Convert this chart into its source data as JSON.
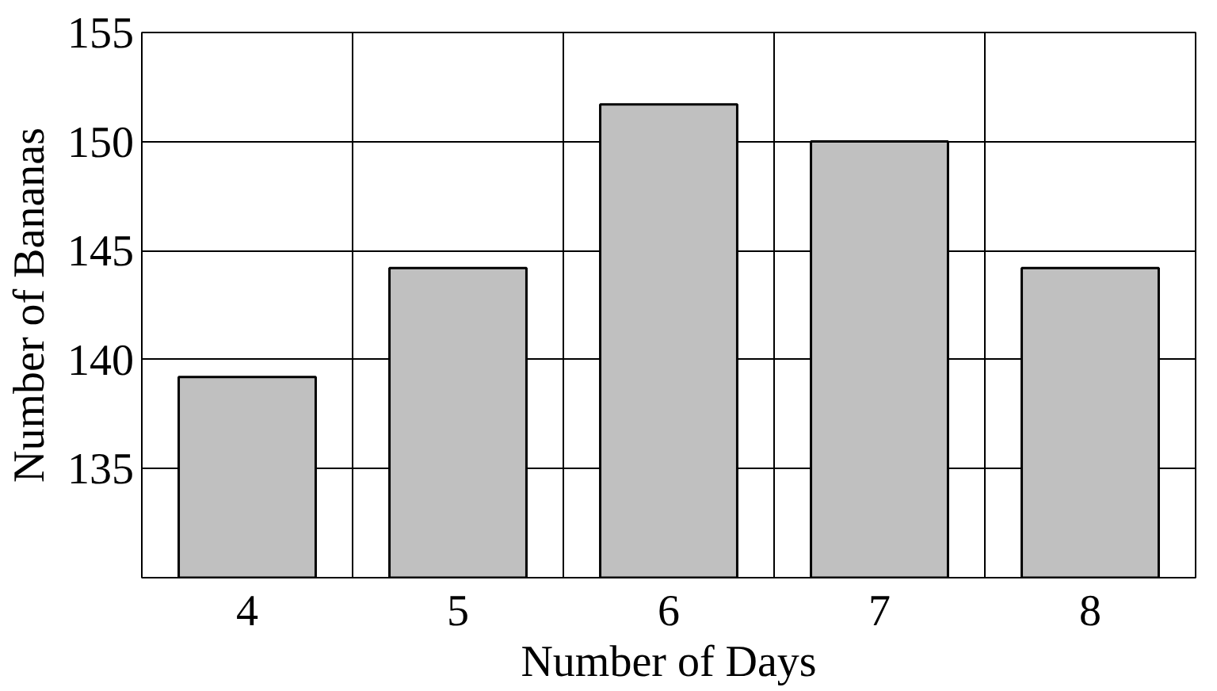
{
  "chart_data": {
    "type": "bar",
    "xlabel": "Number of Days",
    "ylabel": "Number of Bananas",
    "categories": [
      "4",
      "5",
      "6",
      "7",
      "8"
    ],
    "values": [
      139.2,
      144.2,
      151.7,
      150,
      144.2
    ],
    "color": "#c0c0c0",
    "ylim": [
      130,
      155
    ],
    "yticks": [
      {
        "value": 130,
        "label": null
      },
      135,
      140,
      145,
      150,
      155
    ],
    "grid": true
  }
}
